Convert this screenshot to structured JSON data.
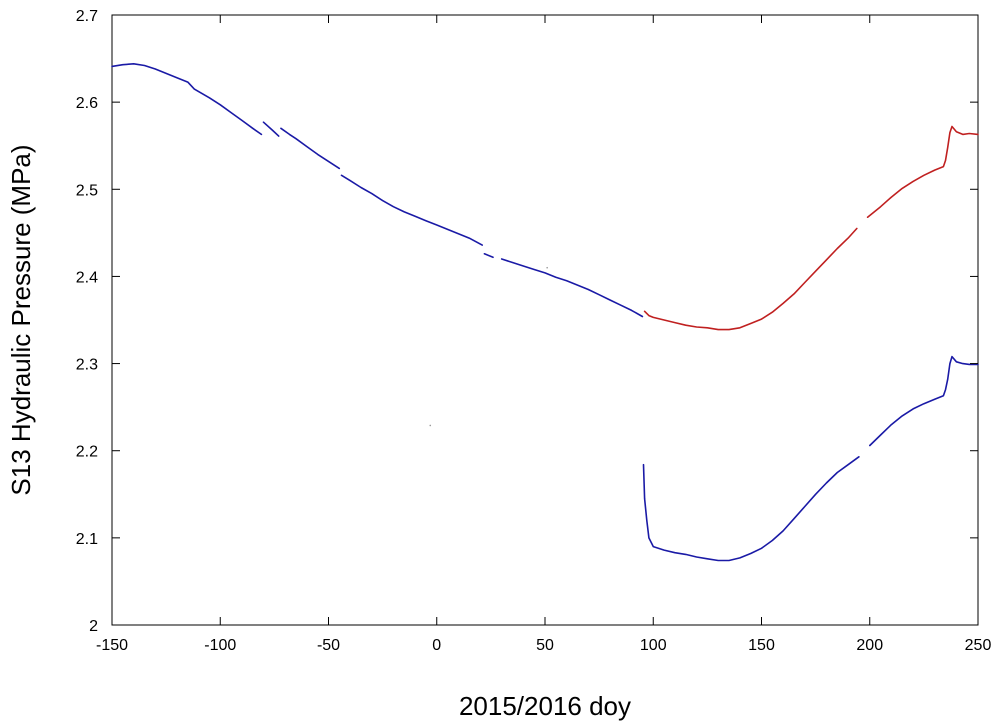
{
  "chart_data": {
    "type": "line",
    "title": "",
    "xlabel": "2015/2016 doy",
    "ylabel": "S13  Hydraulic Pressure  (MPa)",
    "xlim": [
      -150,
      250
    ],
    "ylim": [
      2.0,
      2.7
    ],
    "xticks": [
      -150,
      -100,
      -50,
      0,
      50,
      100,
      150,
      200,
      250
    ],
    "xtick_labels": [
      "-150",
      "-100",
      "-50",
      "0",
      "50",
      "100",
      "150",
      "200",
      "250"
    ],
    "yticks": [
      2.0,
      2.1,
      2.2,
      2.3,
      2.4,
      2.5,
      2.6,
      2.7
    ],
    "ytick_labels": [
      "2",
      "2.1",
      "2.2",
      "2.3",
      "2.4",
      "2.5",
      "2.6",
      "2.7"
    ],
    "grid": false,
    "legend": "none",
    "series": [
      {
        "color": "#1a1aa6",
        "segments": [
          [
            [
              -150,
              2.641
            ],
            [
              -145,
              2.643
            ],
            [
              -140,
              2.644
            ],
            [
              -135,
              2.642
            ],
            [
              -130,
              2.638
            ],
            [
              -125,
              2.633
            ],
            [
              -120,
              2.628
            ],
            [
              -115,
              2.623
            ],
            [
              -112,
              2.615
            ],
            [
              -105,
              2.605
            ],
            [
              -100,
              2.597
            ],
            [
              -95,
              2.588
            ],
            [
              -90,
              2.579
            ],
            [
              -85,
              2.57
            ],
            [
              -81,
              2.563
            ]
          ],
          [
            [
              -80,
              2.577
            ],
            [
              -76,
              2.568
            ],
            [
              -73,
              2.561
            ]
          ],
          [
            [
              -72,
              2.57
            ],
            [
              -68,
              2.563
            ],
            [
              -65,
              2.558
            ],
            [
              -60,
              2.549
            ],
            [
              -55,
              2.54
            ],
            [
              -50,
              2.532
            ],
            [
              -45,
              2.524
            ]
          ],
          [
            [
              -44,
              2.516
            ],
            [
              -40,
              2.51
            ],
            [
              -35,
              2.502
            ],
            [
              -30,
              2.495
            ],
            [
              -25,
              2.487
            ],
            [
              -20,
              2.48
            ],
            [
              -15,
              2.474
            ],
            [
              -10,
              2.469
            ],
            [
              -5,
              2.464
            ],
            [
              0,
              2.459
            ],
            [
              5,
              2.454
            ],
            [
              10,
              2.449
            ],
            [
              15,
              2.444
            ],
            [
              21,
              2.436
            ]
          ],
          [
            [
              22,
              2.426
            ],
            [
              26,
              2.422
            ]
          ],
          [
            [
              30,
              2.42
            ],
            [
              35,
              2.416
            ],
            [
              40,
              2.412
            ],
            [
              45,
              2.408
            ],
            [
              50,
              2.404
            ],
            [
              55,
              2.399
            ],
            [
              60,
              2.395
            ],
            [
              65,
              2.39
            ],
            [
              70,
              2.385
            ],
            [
              75,
              2.379
            ],
            [
              80,
              2.373
            ],
            [
              85,
              2.367
            ],
            [
              90,
              2.361
            ],
            [
              95,
              2.354
            ]
          ],
          [
            [
              95.5,
              2.184
            ],
            [
              96,
              2.145
            ],
            [
              97,
              2.12
            ],
            [
              98,
              2.1
            ],
            [
              100,
              2.09
            ],
            [
              105,
              2.086
            ],
            [
              110,
              2.083
            ],
            [
              115,
              2.081
            ],
            [
              120,
              2.078
            ],
            [
              125,
              2.076
            ],
            [
              130,
              2.074
            ],
            [
              135,
              2.074
            ],
            [
              140,
              2.077
            ],
            [
              145,
              2.082
            ],
            [
              150,
              2.088
            ],
            [
              155,
              2.097
            ],
            [
              160,
              2.108
            ],
            [
              165,
              2.122
            ],
            [
              170,
              2.136
            ],
            [
              175,
              2.15
            ],
            [
              180,
              2.163
            ],
            [
              185,
              2.175
            ],
            [
              190,
              2.184
            ],
            [
              195,
              2.193
            ]
          ],
          [
            [
              200,
              2.206
            ],
            [
              205,
              2.218
            ],
            [
              210,
              2.23
            ],
            [
              215,
              2.24
            ],
            [
              220,
              2.248
            ],
            [
              225,
              2.254
            ],
            [
              230,
              2.259
            ],
            [
              234,
              2.263
            ],
            [
              235,
              2.27
            ],
            [
              236,
              2.282
            ],
            [
              237,
              2.3
            ],
            [
              238,
              2.308
            ],
            [
              240,
              2.302
            ],
            [
              243,
              2.3
            ],
            [
              246,
              2.299
            ],
            [
              250,
              2.299
            ]
          ]
        ]
      },
      {
        "color": "#c02020",
        "segments": [
          [
            [
              96,
              2.36
            ],
            [
              98,
              2.355
            ],
            [
              100,
              2.353
            ],
            [
              105,
              2.35
            ],
            [
              110,
              2.347
            ],
            [
              115,
              2.344
            ],
            [
              120,
              2.342
            ],
            [
              125,
              2.341
            ],
            [
              130,
              2.339
            ],
            [
              135,
              2.339
            ],
            [
              140,
              2.341
            ],
            [
              145,
              2.346
            ],
            [
              150,
              2.351
            ],
            [
              155,
              2.359
            ],
            [
              160,
              2.369
            ],
            [
              165,
              2.38
            ],
            [
              170,
              2.393
            ],
            [
              175,
              2.406
            ],
            [
              180,
              2.419
            ],
            [
              185,
              2.432
            ],
            [
              190,
              2.444
            ],
            [
              194,
              2.455
            ]
          ],
          [
            [
              199,
              2.468
            ],
            [
              205,
              2.48
            ],
            [
              210,
              2.491
            ],
            [
              215,
              2.501
            ],
            [
              220,
              2.509
            ],
            [
              225,
              2.516
            ],
            [
              230,
              2.522
            ],
            [
              234,
              2.526
            ],
            [
              235,
              2.533
            ],
            [
              236,
              2.548
            ],
            [
              237,
              2.565
            ],
            [
              238,
              2.572
            ],
            [
              240,
              2.566
            ],
            [
              243,
              2.563
            ],
            [
              246,
              2.564
            ],
            [
              250,
              2.563
            ]
          ]
        ]
      }
    ],
    "points": [
      {
        "x": -3,
        "y": 2.229,
        "color": "#999999"
      },
      {
        "x": 51,
        "y": 2.41,
        "color": "#999999"
      }
    ]
  }
}
